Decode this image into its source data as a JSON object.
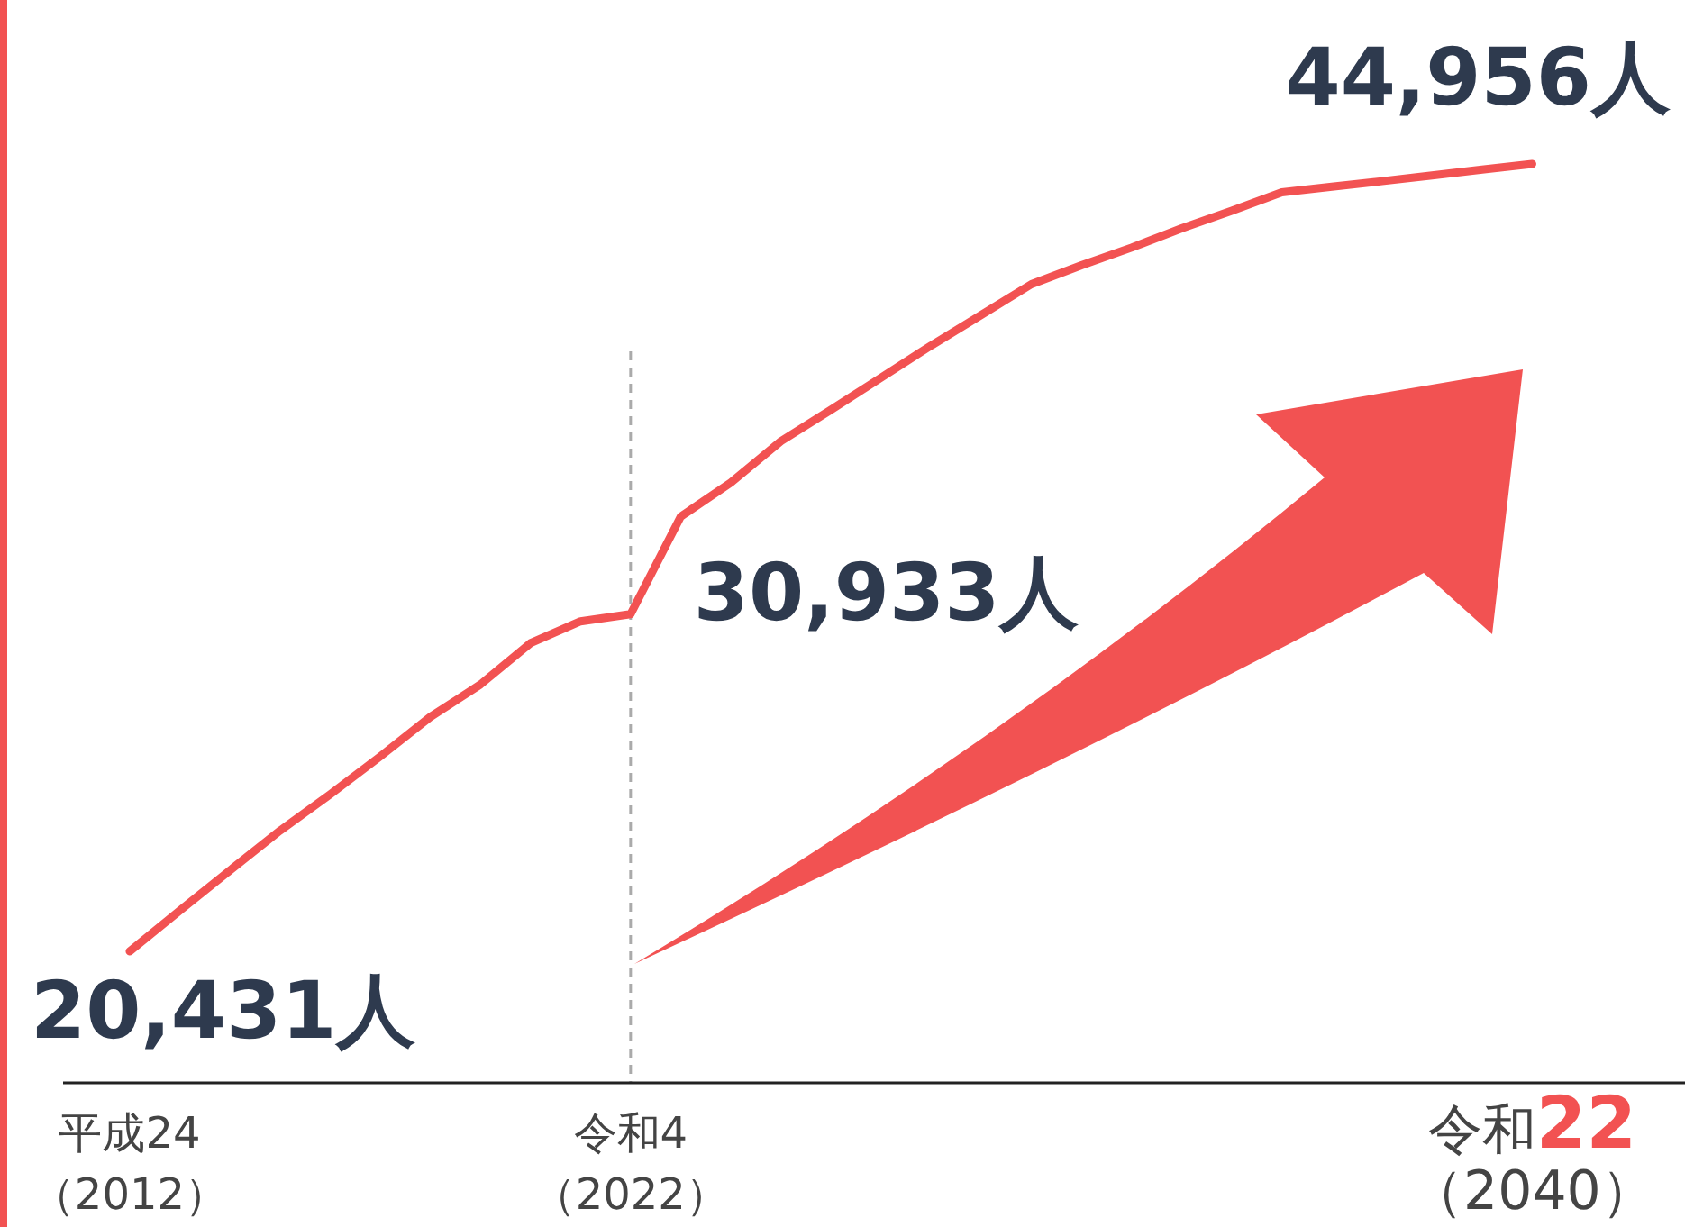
{
  "chart_data": {
    "type": "line",
    "categories": [
      "平成24\n（2012）",
      null,
      null,
      null,
      null,
      null,
      null,
      null,
      null,
      null,
      "令和4\n（2022）",
      null,
      null,
      null,
      null,
      null,
      null,
      null,
      null,
      null,
      null,
      null,
      null,
      null,
      null,
      null,
      null,
      null,
      "令和**22**\n（2040）"
    ],
    "series": [
      {
        "color": "#f25252",
        "values": [
          20431,
          21700,
          22950,
          24190,
          25320,
          26500,
          27730,
          28740,
          30030,
          30710,
          30933,
          33970,
          35030,
          36320,
          37300,
          38300,
          39300,
          40250,
          41210,
          41800,
          42350,
          42950,
          43500,
          44070,
          44250,
          44420,
          44600,
          44780,
          44956
        ],
        "value_labels": [
          "20,431人",
          null,
          null,
          null,
          null,
          null,
          null,
          null,
          null,
          null,
          "30,933人",
          null,
          null,
          null,
          null,
          null,
          null,
          null,
          null,
          null,
          null,
          null,
          null,
          null,
          null,
          null,
          null,
          null,
          "44,956人"
        ]
      }
    ],
    "tick_labels": "x",
    "marker": "none",
    "line_style": "solid",
    "ref_lines": [
      {
        "axis": "x",
        "value": "令和4\n（2022）",
        "color": "#aaaaaa",
        "line_style": "dashed"
      }
    ]
  }
}
